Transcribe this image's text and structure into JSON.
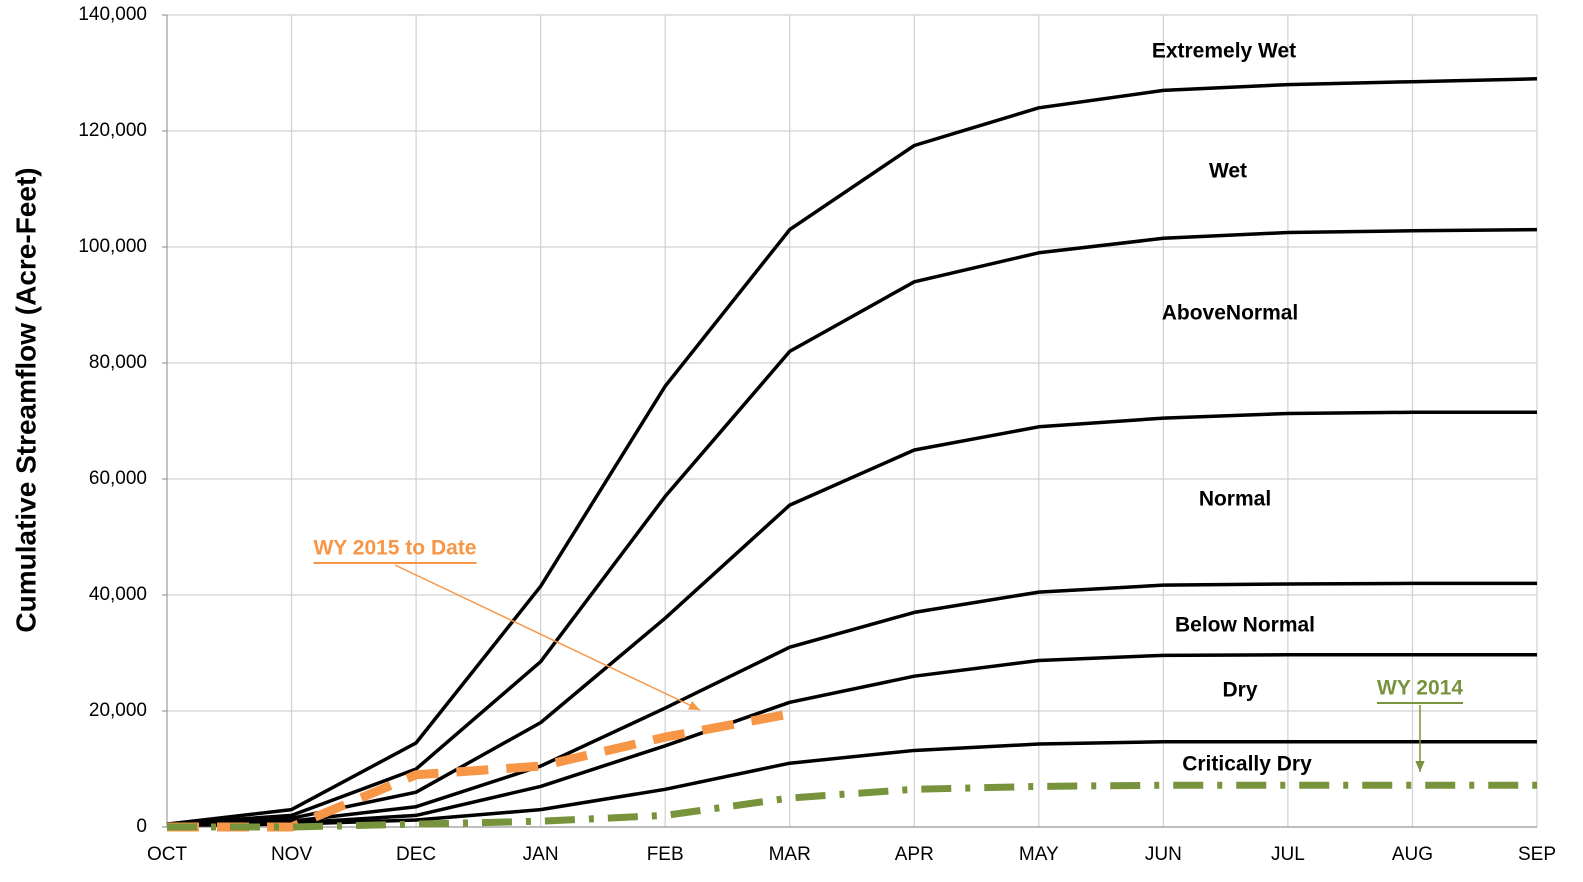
{
  "chart_data": {
    "type": "line",
    "y_label": "Cumulative Streamflow (Acre-Feet)",
    "categories": [
      "OCT",
      "NOV",
      "DEC",
      "JAN",
      "FEB",
      "MAR",
      "APR",
      "MAY",
      "JUN",
      "JUL",
      "AUG",
      "SEP"
    ],
    "ylim": [
      0,
      140000
    ],
    "yticks": [
      0,
      {
        "value": 20000,
        "label": "20,000"
      },
      {
        "value": 40000,
        "label": "40,000"
      },
      {
        "value": 60000,
        "label": "60,000"
      },
      {
        "value": 80000,
        "label": "80,000"
      },
      {
        "value": 100000,
        "label": "100,000"
      },
      {
        "value": 120000,
        "label": "120,000"
      },
      {
        "value": 140000,
        "label": "140,000"
      }
    ],
    "grid": true,
    "annotations": [
      "Extremely Wet",
      "Wet",
      "AboveNormal",
      "Normal",
      "Below Normal",
      "Dry",
      "Critically Dry"
    ],
    "series": [
      {
        "color": "#000000",
        "style": "solid",
        "values": [
          500,
          3000,
          14500,
          41500,
          76000,
          103000,
          117500,
          124000,
          127000,
          128000,
          128500,
          129000
        ]
      },
      {
        "color": "#000000",
        "style": "solid",
        "values": [
          500,
          2000,
          10000,
          28500,
          57000,
          82000,
          94000,
          99000,
          101500,
          102500,
          102800,
          103000
        ]
      },
      {
        "color": "#000000",
        "style": "solid",
        "values": [
          500,
          1500,
          6000,
          18000,
          36000,
          55500,
          65000,
          69000,
          70500,
          71300,
          71500,
          71500
        ]
      },
      {
        "color": "#000000",
        "style": "solid",
        "values": [
          500,
          1000,
          3500,
          10500,
          20500,
          31000,
          37000,
          40500,
          41700,
          41900,
          42000,
          42000
        ]
      },
      {
        "color": "#000000",
        "style": "solid",
        "values": [
          500,
          700,
          2000,
          7000,
          14000,
          21500,
          26000,
          28700,
          29600,
          29700,
          29700,
          29700
        ]
      },
      {
        "color": "#000000",
        "style": "solid",
        "values": [
          300,
          500,
          1200,
          3000,
          6500,
          11000,
          13200,
          14300,
          14700,
          14700,
          14700,
          14700
        ]
      },
      {
        "name": "WY 2015 to Date",
        "color": "#f79646",
        "style": "dash",
        "values": [
          0,
          0,
          9000,
          10500,
          15500,
          19500,
          null,
          null,
          null,
          null,
          null,
          null
        ]
      },
      {
        "name": "WY 2014",
        "color": "#77933c",
        "style": "dashdot",
        "values": [
          0,
          0,
          500,
          1000,
          2000,
          5000,
          6500,
          7000,
          7200,
          7200,
          7200,
          7200
        ]
      }
    ]
  }
}
